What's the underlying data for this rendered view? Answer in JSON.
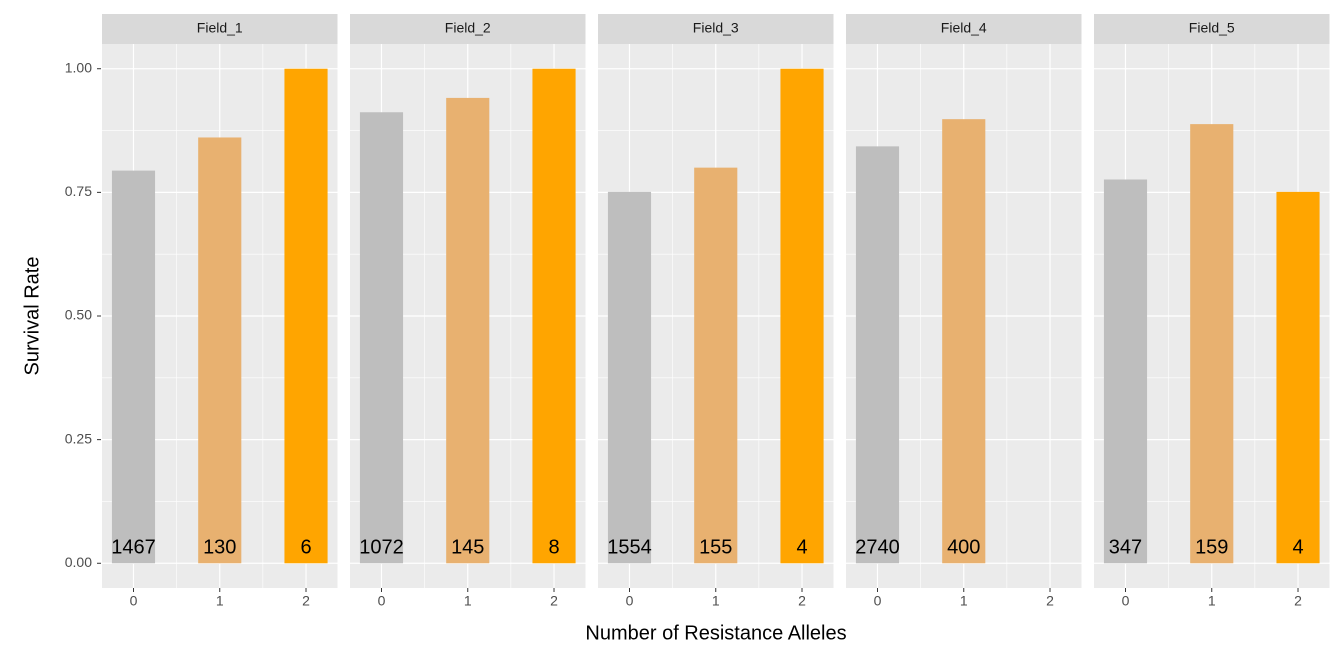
{
  "chart_data": {
    "type": "bar",
    "x_label": "Number of Resistance Alleles",
    "y_label": "Survival Rate",
    "colors": [
      "#bebebe",
      "#e8b170",
      "#ffa500"
    ],
    "ylim": [
      -0.05,
      1.05
    ],
    "yticks": [
      {
        "value": 0,
        "label": "0.00"
      },
      {
        "value": 0.25,
        "label": "0.25"
      },
      {
        "value": 0.5,
        "label": "0.50"
      },
      {
        "value": 0.75,
        "label": "0.75"
      },
      {
        "value": 1,
        "label": "1.00"
      }
    ],
    "grid": true,
    "facets": [
      {
        "title": "Field_1",
        "categories": [
          "0",
          "1",
          "2"
        ],
        "values": [
          0.794,
          0.861,
          1.0
        ],
        "n": [
          1467,
          130,
          6
        ]
      },
      {
        "title": "Field_2",
        "categories": [
          "0",
          "1",
          "2"
        ],
        "values": [
          0.912,
          0.941,
          1.0
        ],
        "n": [
          1072,
          145,
          8
        ]
      },
      {
        "title": "Field_3",
        "categories": [
          "0",
          "1",
          "2"
        ],
        "values": [
          0.751,
          0.8,
          1.0
        ],
        "n": [
          1554,
          155,
          4
        ]
      },
      {
        "title": "Field_4",
        "categories": [
          "0",
          "1",
          "2"
        ],
        "values": [
          0.843,
          0.898,
          null
        ],
        "n": [
          2740,
          400,
          null
        ]
      },
      {
        "title": "Field_5",
        "categories": [
          "0",
          "1",
          "2"
        ],
        "values": [
          0.776,
          0.888,
          0.751
        ],
        "n": [
          347,
          159,
          4
        ]
      }
    ]
  }
}
